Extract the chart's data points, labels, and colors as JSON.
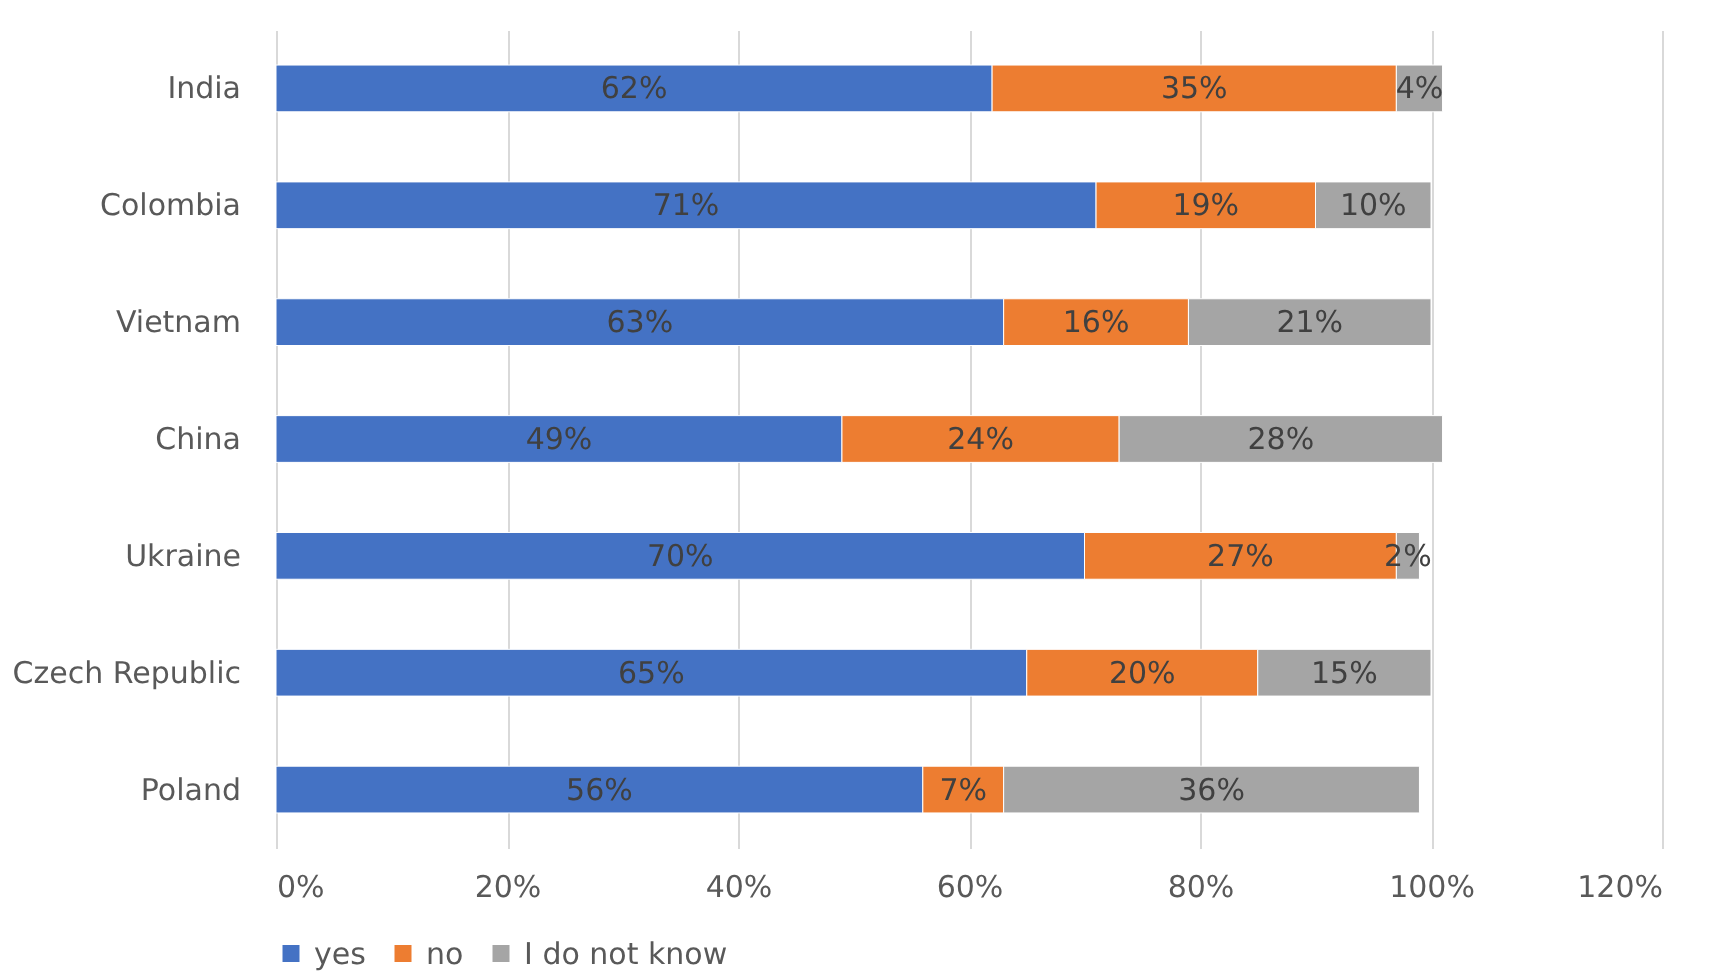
{
  "chart_data": {
    "type": "bar",
    "orientation": "horizontal",
    "stacked": true,
    "categories": [
      "India",
      "Colombia",
      "Vietnam",
      "China",
      "Ukraine",
      "Czech Republic",
      "Poland"
    ],
    "series": [
      {
        "name": "yes",
        "color": "#4472c4",
        "values": [
          62,
          71,
          63,
          49,
          70,
          65,
          56
        ],
        "value_labels": [
          "62%",
          "71%",
          "63%",
          "49%",
          "70%",
          "65%",
          "56%"
        ]
      },
      {
        "name": "no",
        "color": "#ed7d31",
        "values": [
          35,
          19,
          16,
          24,
          27,
          20,
          7
        ],
        "value_labels": [
          "35%",
          "19%",
          "16%",
          "24%",
          "27%",
          "20%",
          "7%"
        ]
      },
      {
        "name": "I do not know",
        "color": "#a5a5a5",
        "values": [
          4,
          10,
          21,
          28,
          2,
          15,
          36
        ],
        "value_labels": [
          "4%",
          "10%",
          "21%",
          "28%",
          "2%",
          "15%",
          "36%"
        ]
      }
    ],
    "xlim": [
      0,
      120
    ],
    "xticks": [
      {
        "value": 0,
        "label": "0%"
      },
      {
        "value": 20,
        "label": "20%"
      },
      {
        "value": 40,
        "label": "40%"
      },
      {
        "value": 60,
        "label": "60%"
      },
      {
        "value": 80,
        "label": "80%"
      },
      {
        "value": 100,
        "label": "100%"
      },
      {
        "value": 120,
        "label": "120%"
      }
    ],
    "grid": "x",
    "legend": "bottom"
  }
}
